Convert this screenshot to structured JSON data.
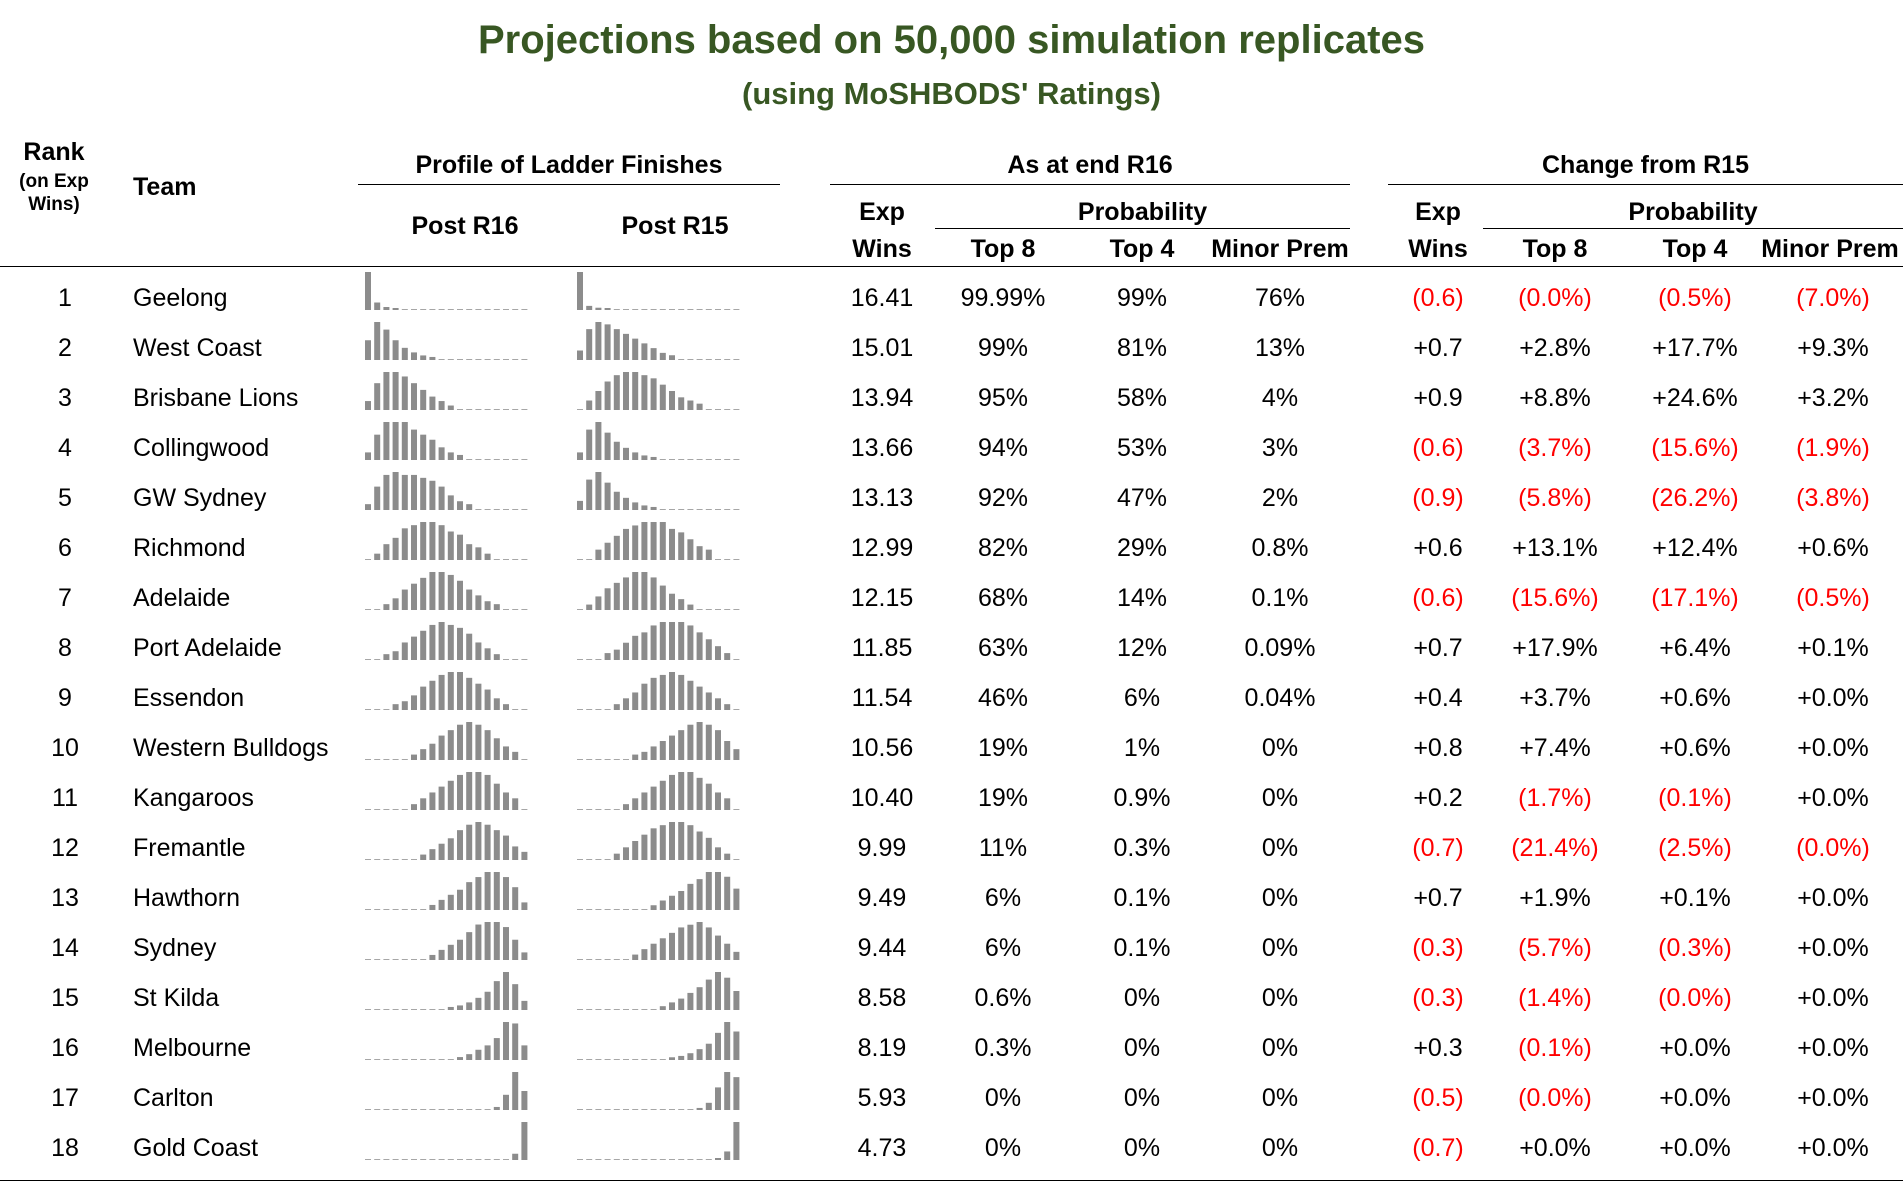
{
  "title": "Projections based on 50,000 simulation replicates",
  "subtitle": "(using MoSHBODS' Ratings)",
  "headers": {
    "rank_line1": "Rank",
    "rank_line2": "(on Exp",
    "rank_line3": "Wins)",
    "team": "Team",
    "profile": "Profile of Ladder Finishes",
    "post_r16": "Post R16",
    "post_r15": "Post R15",
    "as_at": "As at end R16",
    "change": "Change from R15",
    "exp": "Exp",
    "wins": "Wins",
    "probability": "Probability",
    "top8": "Top 8",
    "top4": "Top 4",
    "minor_prem": "Minor Prem"
  },
  "colors": {
    "title": "#385723",
    "negative": "#ff0000",
    "spark_bar": "#8c8c8c",
    "spark_dash": "#a6a6a6"
  },
  "chart_data": {
    "type": "table",
    "columns": [
      "Rank",
      "Team",
      "Exp Wins",
      "Top 8",
      "Top 4",
      "Minor Prem",
      "Chg Exp Wins",
      "Chg Top 8",
      "Chg Top 4",
      "Chg Minor Prem"
    ],
    "rows": [
      {
        "rank": "1",
        "team": "Geelong",
        "exp": "16.41",
        "top8": "99.99%",
        "top4": "99%",
        "minor": "76%",
        "d_exp": "(0.6)",
        "d_top8": "(0.0%)",
        "d_top4": "(0.5%)",
        "d_minor": "(7.0%)",
        "profile_r16": [
          0.76,
          0.15,
          0.06,
          0.02,
          0.01,
          0,
          0,
          0,
          0,
          0,
          0,
          0,
          0,
          0,
          0,
          0,
          0,
          0
        ],
        "profile_r15": [
          0.83,
          0.09,
          0.05,
          0.02,
          0.01,
          0,
          0,
          0,
          0,
          0,
          0,
          0,
          0,
          0,
          0,
          0,
          0,
          0
        ]
      },
      {
        "rank": "2",
        "team": "West Coast",
        "exp": "15.01",
        "top8": "99%",
        "top4": "81%",
        "minor": "13%",
        "d_exp": "+0.7",
        "d_top8": "+2.8%",
        "d_top4": "+17.7%",
        "d_minor": "+9.3%",
        "profile_r16": [
          0.13,
          0.25,
          0.2,
          0.13,
          0.08,
          0.05,
          0.03,
          0.02,
          0.01,
          0,
          0,
          0,
          0,
          0,
          0,
          0,
          0,
          0
        ],
        "profile_r15": [
          0.04,
          0.13,
          0.16,
          0.15,
          0.13,
          0.11,
          0.09,
          0.07,
          0.05,
          0.03,
          0.02,
          0.01,
          0.01,
          0,
          0,
          0,
          0,
          0
        ]
      },
      {
        "rank": "3",
        "team": "Brisbane Lions",
        "exp": "13.94",
        "top8": "95%",
        "top4": "58%",
        "minor": "4%",
        "d_exp": "+0.9",
        "d_top8": "+8.8%",
        "d_top4": "+24.6%",
        "d_minor": "+3.2%",
        "profile_r16": [
          0.04,
          0.12,
          0.17,
          0.17,
          0.15,
          0.12,
          0.09,
          0.06,
          0.04,
          0.02,
          0.01,
          0,
          0,
          0,
          0,
          0,
          0,
          0
        ],
        "profile_r15": [
          0.01,
          0.03,
          0.06,
          0.09,
          0.11,
          0.12,
          0.12,
          0.11,
          0.1,
          0.08,
          0.06,
          0.04,
          0.03,
          0.02,
          0.01,
          0,
          0,
          0
        ]
      },
      {
        "rank": "4",
        "team": "Collingwood",
        "exp": "13.66",
        "top8": "94%",
        "top4": "53%",
        "minor": "3%",
        "d_exp": "(0.6)",
        "d_top8": "(3.7%)",
        "d_top4": "(15.6%)",
        "d_minor": "(1.9%)",
        "profile_r16": [
          0.03,
          0.1,
          0.15,
          0.15,
          0.15,
          0.12,
          0.1,
          0.08,
          0.05,
          0.03,
          0.02,
          0.01,
          0,
          0,
          0,
          0,
          0,
          0
        ],
        "profile_r15": [
          0.05,
          0.2,
          0.25,
          0.18,
          0.12,
          0.08,
          0.05,
          0.03,
          0.02,
          0.01,
          0.01,
          0,
          0,
          0,
          0,
          0,
          0,
          0
        ]
      },
      {
        "rank": "5",
        "team": "GW Sydney",
        "exp": "13.13",
        "top8": "92%",
        "top4": "47%",
        "minor": "2%",
        "d_exp": "(0.9)",
        "d_top8": "(5.8%)",
        "d_top4": "(26.2%)",
        "d_minor": "(3.8%)",
        "profile_r16": [
          0.02,
          0.08,
          0.12,
          0.13,
          0.12,
          0.12,
          0.11,
          0.1,
          0.08,
          0.05,
          0.03,
          0.02,
          0.01,
          0,
          0,
          0,
          0,
          0
        ],
        "profile_r15": [
          0.06,
          0.2,
          0.25,
          0.18,
          0.12,
          0.08,
          0.05,
          0.03,
          0.02,
          0.01,
          0,
          0,
          0,
          0,
          0,
          0,
          0,
          0
        ]
      },
      {
        "rank": "6",
        "team": "Richmond",
        "exp": "12.99",
        "top8": "82%",
        "top4": "29%",
        "minor": "0.8%",
        "d_exp": "+0.6",
        "d_top8": "+13.1%",
        "d_top4": "+12.4%",
        "d_minor": "+0.6%",
        "profile_r16": [
          0.01,
          0.02,
          0.05,
          0.07,
          0.1,
          0.11,
          0.12,
          0.12,
          0.11,
          0.09,
          0.08,
          0.05,
          0.04,
          0.02,
          0.01,
          0,
          0,
          0
        ],
        "profile_r15": [
          0,
          0.01,
          0.03,
          0.05,
          0.07,
          0.09,
          0.1,
          0.11,
          0.11,
          0.11,
          0.09,
          0.08,
          0.06,
          0.04,
          0.03,
          0.01,
          0.01,
          0
        ]
      },
      {
        "rank": "7",
        "team": "Adelaide",
        "exp": "12.15",
        "top8": "68%",
        "top4": "14%",
        "minor": "0.1%",
        "d_exp": "(0.6)",
        "d_top8": "(15.6%)",
        "d_top4": "(17.1%)",
        "d_minor": "(0.5%)",
        "profile_r16": [
          0,
          0.01,
          0.02,
          0.04,
          0.07,
          0.09,
          0.11,
          0.13,
          0.13,
          0.12,
          0.1,
          0.07,
          0.05,
          0.03,
          0.02,
          0.01,
          0,
          0
        ],
        "profile_r15": [
          0,
          0.02,
          0.05,
          0.08,
          0.1,
          0.12,
          0.14,
          0.14,
          0.12,
          0.09,
          0.06,
          0.04,
          0.02,
          0.01,
          0.01,
          0,
          0,
          0
        ]
      },
      {
        "rank": "8",
        "team": "Port Adelaide",
        "exp": "11.85",
        "top8": "63%",
        "top4": "12%",
        "minor": "0.09%",
        "d_exp": "+0.7",
        "d_top8": "+17.9%",
        "d_top4": "+6.4%",
        "d_minor": "+0.1%",
        "profile_r16": [
          0,
          0.01,
          0.02,
          0.03,
          0.06,
          0.08,
          0.1,
          0.12,
          0.13,
          0.12,
          0.11,
          0.09,
          0.06,
          0.04,
          0.02,
          0.01,
          0,
          0
        ],
        "profile_r15": [
          0,
          0,
          0.01,
          0.02,
          0.03,
          0.05,
          0.07,
          0.08,
          0.1,
          0.11,
          0.11,
          0.11,
          0.1,
          0.08,
          0.06,
          0.04,
          0.02,
          0.01
        ]
      },
      {
        "rank": "9",
        "team": "Essendon",
        "exp": "11.54",
        "top8": "46%",
        "top4": "6%",
        "minor": "0.04%",
        "d_exp": "+0.4",
        "d_top8": "+3.7%",
        "d_top4": "+0.6%",
        "d_minor": "+0.0%",
        "profile_r16": [
          0,
          0,
          0.01,
          0.02,
          0.03,
          0.05,
          0.08,
          0.1,
          0.12,
          0.13,
          0.13,
          0.11,
          0.09,
          0.07,
          0.04,
          0.02,
          0.01,
          0
        ],
        "profile_r15": [
          0,
          0,
          0,
          0.01,
          0.02,
          0.04,
          0.06,
          0.09,
          0.11,
          0.12,
          0.13,
          0.12,
          0.1,
          0.08,
          0.06,
          0.04,
          0.02,
          0
        ]
      },
      {
        "rank": "10",
        "team": "Western Bulldogs",
        "exp": "10.56",
        "top8": "19%",
        "top4": "1%",
        "minor": "0%",
        "d_exp": "+0.8",
        "d_top8": "+7.4%",
        "d_top4": "+0.6%",
        "d_minor": "+0.0%",
        "profile_r16": [
          0,
          0,
          0,
          0,
          0.01,
          0.02,
          0.04,
          0.06,
          0.09,
          0.11,
          0.13,
          0.14,
          0.13,
          0.11,
          0.08,
          0.05,
          0.03,
          0
        ],
        "profile_r15": [
          0,
          0,
          0,
          0,
          0,
          0.01,
          0.02,
          0.03,
          0.05,
          0.07,
          0.09,
          0.11,
          0.13,
          0.14,
          0.13,
          0.11,
          0.07,
          0.04
        ]
      },
      {
        "rank": "11",
        "team": "Kangaroos",
        "exp": "10.40",
        "top8": "19%",
        "top4": "0.9%",
        "minor": "0%",
        "d_exp": "+0.2",
        "d_top8": "(1.7%)",
        "d_top4": "(0.1%)",
        "d_minor": "+0.0%",
        "profile_r16": [
          0,
          0,
          0,
          0,
          0.01,
          0.02,
          0.04,
          0.06,
          0.08,
          0.1,
          0.12,
          0.13,
          0.13,
          0.12,
          0.09,
          0.06,
          0.04,
          0
        ],
        "profile_r15": [
          0,
          0,
          0,
          0,
          0.01,
          0.02,
          0.04,
          0.06,
          0.08,
          0.1,
          0.12,
          0.13,
          0.13,
          0.11,
          0.09,
          0.06,
          0.04,
          0.01
        ]
      },
      {
        "rank": "12",
        "team": "Fremantle",
        "exp": "9.99",
        "top8": "11%",
        "top4": "0.3%",
        "minor": "0%",
        "d_exp": "(0.7)",
        "d_top8": "(21.4%)",
        "d_top4": "(2.5%)",
        "d_minor": "(0.0%)",
        "profile_r16": [
          0,
          0,
          0,
          0,
          0,
          0.01,
          0.02,
          0.04,
          0.06,
          0.08,
          0.11,
          0.13,
          0.14,
          0.13,
          0.11,
          0.09,
          0.05,
          0.03
        ],
        "profile_r15": [
          0,
          0,
          0,
          0.01,
          0.02,
          0.04,
          0.06,
          0.08,
          0.1,
          0.11,
          0.12,
          0.12,
          0.11,
          0.09,
          0.07,
          0.04,
          0.02,
          0.01
        ]
      },
      {
        "rank": "13",
        "team": "Hawthorn",
        "exp": "9.49",
        "top8": "6%",
        "top4": "0.1%",
        "minor": "0%",
        "d_exp": "+0.7",
        "d_top8": "+1.9%",
        "d_top4": "+0.1%",
        "d_minor": "+0.0%",
        "profile_r16": [
          0,
          0,
          0,
          0,
          0,
          0,
          0.01,
          0.02,
          0.04,
          0.06,
          0.08,
          0.11,
          0.13,
          0.15,
          0.15,
          0.13,
          0.09,
          0.03
        ],
        "profile_r15": [
          0,
          0,
          0,
          0,
          0,
          0,
          0,
          0.01,
          0.02,
          0.04,
          0.06,
          0.08,
          0.11,
          0.13,
          0.16,
          0.16,
          0.14,
          0.09
        ]
      },
      {
        "rank": "14",
        "team": "Sydney",
        "exp": "9.44",
        "top8": "6%",
        "top4": "0.1%",
        "minor": "0%",
        "d_exp": "(0.3)",
        "d_top8": "(5.7%)",
        "d_top4": "(0.3%)",
        "d_minor": "+0.0%",
        "profile_r16": [
          0,
          0,
          0,
          0,
          0,
          0,
          0.01,
          0.02,
          0.04,
          0.06,
          0.08,
          0.11,
          0.14,
          0.15,
          0.15,
          0.13,
          0.08,
          0.03
        ],
        "profile_r15": [
          0,
          0,
          0,
          0,
          0,
          0.01,
          0.02,
          0.04,
          0.06,
          0.08,
          0.1,
          0.12,
          0.13,
          0.14,
          0.12,
          0.09,
          0.06,
          0.03
        ]
      },
      {
        "rank": "15",
        "team": "St Kilda",
        "exp": "8.58",
        "top8": "0.6%",
        "top4": "0%",
        "minor": "0%",
        "d_exp": "(0.3)",
        "d_top8": "(1.4%)",
        "d_top4": "(0.0%)",
        "d_minor": "+0.0%",
        "profile_r16": [
          0,
          0,
          0,
          0,
          0,
          0,
          0,
          0,
          0.01,
          0.02,
          0.03,
          0.05,
          0.08,
          0.12,
          0.19,
          0.25,
          0.17,
          0.06
        ],
        "profile_r15": [
          0,
          0,
          0,
          0,
          0,
          0,
          0,
          0.01,
          0.01,
          0.02,
          0.04,
          0.06,
          0.09,
          0.12,
          0.16,
          0.2,
          0.17,
          0.1
        ]
      },
      {
        "rank": "16",
        "team": "Melbourne",
        "exp": "8.19",
        "top8": "0.3%",
        "top4": "0%",
        "minor": "0%",
        "d_exp": "+0.3",
        "d_top8": "(0.1%)",
        "d_top4": "+0.0%",
        "d_minor": "+0.0%",
        "profile_r16": [
          0,
          0,
          0,
          0,
          0,
          0,
          0,
          0,
          0,
          0.01,
          0.02,
          0.04,
          0.07,
          0.1,
          0.15,
          0.26,
          0.25,
          0.1
        ],
        "profile_r15": [
          0,
          0,
          0,
          0,
          0,
          0,
          0,
          0,
          0,
          0.01,
          0.02,
          0.03,
          0.05,
          0.08,
          0.12,
          0.2,
          0.28,
          0.21
        ]
      },
      {
        "rank": "17",
        "team": "Carlton",
        "exp": "5.93",
        "top8": "0%",
        "top4": "0%",
        "minor": "0%",
        "d_exp": "(0.5)",
        "d_top8": "(0.0%)",
        "d_top4": "+0.0%",
        "d_minor": "+0.0%",
        "profile_r16": [
          0,
          0,
          0,
          0,
          0,
          0,
          0,
          0,
          0,
          0,
          0,
          0,
          0,
          0.01,
          0.04,
          0.2,
          0.5,
          0.25
        ],
        "profile_r15": [
          0,
          0,
          0,
          0,
          0,
          0,
          0,
          0,
          0,
          0,
          0,
          0,
          0,
          0.02,
          0.07,
          0.22,
          0.37,
          0.32
        ]
      },
      {
        "rank": "18",
        "team": "Gold Coast",
        "exp": "4.73",
        "top8": "0%",
        "top4": "0%",
        "minor": "0%",
        "d_exp": "(0.7)",
        "d_top8": "+0.0%",
        "d_top4": "+0.0%",
        "d_minor": "+0.0%",
        "profile_r16": [
          0,
          0,
          0,
          0,
          0,
          0,
          0,
          0,
          0,
          0,
          0,
          0,
          0,
          0,
          0,
          0.01,
          0.14,
          0.85
        ],
        "profile_r15": [
          0,
          0,
          0,
          0,
          0,
          0,
          0,
          0,
          0,
          0,
          0,
          0,
          0,
          0,
          0,
          0.02,
          0.18,
          0.8
        ]
      }
    ]
  }
}
